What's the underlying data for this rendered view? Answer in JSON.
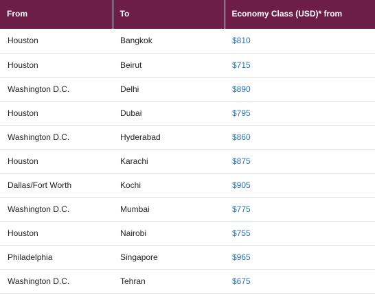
{
  "table": {
    "headers": [
      "From",
      "To",
      "Economy Class (USD)* from"
    ],
    "rows": [
      {
        "from": "Houston",
        "to": "Bangkok",
        "price": "$810"
      },
      {
        "from": "Houston",
        "to": "Beirut",
        "price": "$715"
      },
      {
        "from": "Washington D.C.",
        "to": "Delhi",
        "price": "$890"
      },
      {
        "from": "Houston",
        "to": "Dubai",
        "price": "$795"
      },
      {
        "from": "Washington D.C.",
        "to": "Hyderabad",
        "price": "$860"
      },
      {
        "from": "Houston",
        "to": "Karachi",
        "price": "$875"
      },
      {
        "from": "Dallas/Fort Worth",
        "to": "Kochi",
        "price": "$905"
      },
      {
        "from": "Washington D.C.",
        "to": "Mumbai",
        "price": "$775"
      },
      {
        "from": "Houston",
        "to": "Nairobi",
        "price": "$755"
      },
      {
        "from": "Philadelphia",
        "to": "Singapore",
        "price": "$965"
      },
      {
        "from": "Washington D.C.",
        "to": "Tehran",
        "price": "$675"
      }
    ]
  },
  "colors": {
    "header_bg": "#6d1e48",
    "header_text": "#ffffff",
    "price_link": "#2a72b5",
    "row_divider": "#dcdcdc"
  }
}
